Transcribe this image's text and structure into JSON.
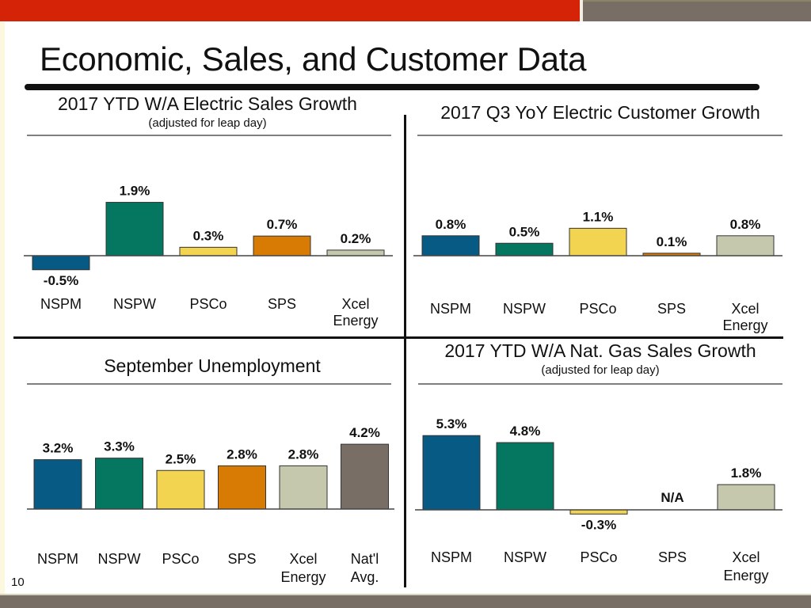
{
  "page": {
    "title": "Economic, Sales, and Customer Data",
    "page_number": "10"
  },
  "colors": {
    "NSPM": "#075a83",
    "NSPW": "#057660",
    "PSCo": "#f2d450",
    "SPS": "#d77b05",
    "Xcel Energy": "#c6c8ad",
    "Nat'l Avg.": "#786e66",
    "header_red": "#d42306",
    "header_gray": "#786e66"
  },
  "chart_data": [
    {
      "id": "electric-sales-growth",
      "type": "bar",
      "title": "2017 YTD W/A Electric Sales Growth",
      "subtitle": "(adjusted for leap day)",
      "categories": [
        "NSPM",
        "NSPW",
        "PSCo",
        "SPS",
        "Xcel Energy"
      ],
      "values": [
        -0.5,
        1.9,
        0.3,
        0.7,
        0.2
      ],
      "labels": [
        "-0.5%",
        "1.9%",
        "0.3%",
        "0.7%",
        "0.2%"
      ],
      "unit": "%",
      "xlabel": "",
      "ylabel": "",
      "grid": false,
      "legend": "none"
    },
    {
      "id": "electric-customer-growth",
      "type": "bar",
      "title": "2017 Q3 YoY Electric Customer Growth",
      "subtitle": "",
      "categories": [
        "NSPM",
        "NSPW",
        "PSCo",
        "SPS",
        "Xcel Energy"
      ],
      "values": [
        0.8,
        0.5,
        1.1,
        0.1,
        0.8
      ],
      "labels": [
        "0.8%",
        "0.5%",
        "1.1%",
        "0.1%",
        "0.8%"
      ],
      "unit": "%",
      "xlabel": "",
      "ylabel": "",
      "grid": false,
      "legend": "none"
    },
    {
      "id": "september-unemployment",
      "type": "bar",
      "title": "September Unemployment",
      "subtitle": "",
      "categories": [
        "NSPM",
        "NSPW",
        "PSCo",
        "SPS",
        "Xcel Energy",
        "Nat'l Avg."
      ],
      "values": [
        3.2,
        3.3,
        2.5,
        2.8,
        2.8,
        4.2
      ],
      "labels": [
        "3.2%",
        "3.3%",
        "2.5%",
        "2.8%",
        "2.8%",
        "4.2%"
      ],
      "unit": "%",
      "xlabel": "",
      "ylabel": "",
      "grid": false,
      "legend": "none"
    },
    {
      "id": "gas-sales-growth",
      "type": "bar",
      "title": "2017 YTD W/A Nat. Gas Sales Growth",
      "subtitle": "(adjusted for leap day)",
      "categories": [
        "NSPM",
        "NSPW",
        "PSCo",
        "SPS",
        "Xcel Energy"
      ],
      "values": [
        5.3,
        4.8,
        -0.3,
        null,
        1.8
      ],
      "labels": [
        "5.3%",
        "4.8%",
        "-0.3%",
        "N/A",
        "1.8%"
      ],
      "unit": "%",
      "xlabel": "",
      "ylabel": "",
      "grid": false,
      "legend": "none"
    }
  ]
}
